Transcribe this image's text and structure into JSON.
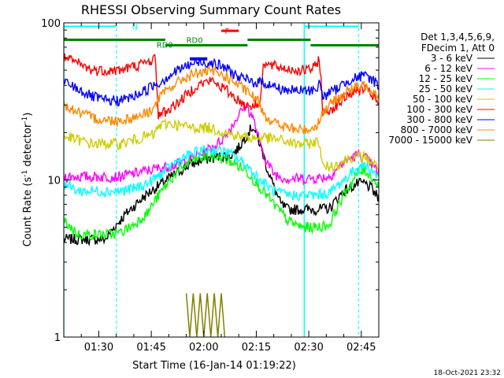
{
  "chart_data": {
    "type": "line",
    "title": "RHESSI Observing Summary Count Rates",
    "xlabel": "Start Time (16-Jan-14 01:19:22)",
    "ylabel_main": "Count Rate (s",
    "ylabel_sup1": "-1",
    "ylabel_mid": " detector",
    "ylabel_sup2": "-1",
    "ylabel_end": ")",
    "yscale": "log",
    "ylim": [
      1,
      100
    ],
    "xlim_minutes": [
      0,
      90
    ],
    "x_ticks": [
      {
        "minute": 10,
        "label": "01:30"
      },
      {
        "minute": 25,
        "label": "01:45"
      },
      {
        "minute": 40,
        "label": "02:00"
      },
      {
        "minute": 55,
        "label": "02:15"
      },
      {
        "minute": 70,
        "label": "02:30"
      },
      {
        "minute": 85,
        "label": "02:45"
      }
    ],
    "y_ticks": [
      {
        "value": 1,
        "label": "1"
      },
      {
        "value": 10,
        "label": "10"
      },
      {
        "value": 100,
        "label": "100"
      }
    ],
    "legend_header": [
      "Det 1,3,4,5,6,9,",
      "FDecim 1, Att 0"
    ],
    "series": [
      {
        "name": "3 - 6 keV",
        "color": "#000000",
        "x": [
          0,
          4,
          8,
          12,
          16,
          20,
          24,
          28,
          32,
          36,
          40,
          44,
          48,
          50,
          52,
          54,
          56,
          58,
          60,
          62,
          64,
          68,
          72,
          76,
          80,
          84,
          86,
          88,
          90
        ],
        "y": [
          4.2,
          4.2,
          4.2,
          4.2,
          5.5,
          6.8,
          8.2,
          9.5,
          11,
          12.5,
          13.5,
          14,
          14.5,
          16,
          19,
          22,
          17,
          12,
          9,
          7,
          6.5,
          6.5,
          6.5,
          6.6,
          8.5,
          9.5,
          9.5,
          8.8,
          7.5
        ]
      },
      {
        "name": "6 - 12 keV",
        "color": "#ff00ff",
        "x": [
          0,
          4,
          8,
          12,
          16,
          20,
          24,
          28,
          32,
          36,
          40,
          44,
          46,
          48,
          50,
          52,
          54,
          56,
          58,
          60,
          62,
          64,
          68,
          72,
          76,
          80,
          84,
          86,
          88,
          90
        ],
        "y": [
          10.5,
          10.5,
          10.5,
          10.5,
          10.5,
          11,
          11.5,
          12,
          12.5,
          13.5,
          15,
          17,
          19,
          22,
          26,
          30,
          25,
          17,
          13,
          11,
          10.5,
          10.2,
          10.2,
          10.3,
          10.5,
          13,
          14.5,
          14,
          12.5,
          11
        ]
      },
      {
        "name": "12 - 25 keV",
        "color": "#00ff00",
        "x": [
          0,
          4,
          8,
          12,
          16,
          20,
          24,
          28,
          32,
          36,
          40,
          44,
          48,
          52,
          56,
          60,
          64,
          68,
          72,
          76,
          80,
          84,
          86,
          88,
          90
        ],
        "y": [
          5.5,
          4.5,
          4.5,
          4.5,
          4.6,
          5.2,
          6.2,
          8.5,
          11,
          13,
          14,
          14,
          13,
          11.5,
          9,
          7,
          5.5,
          5,
          5,
          5.2,
          8,
          11,
          11.5,
          10.5,
          9
        ]
      },
      {
        "name": "25 - 50 keV",
        "color": "#00ffff",
        "x": [
          0,
          4,
          8,
          12,
          16,
          20,
          24,
          28,
          32,
          36,
          40,
          44,
          48,
          52,
          56,
          60,
          64,
          68,
          72,
          76,
          80,
          84,
          86,
          88,
          90
        ],
        "y": [
          9.5,
          8.5,
          8.5,
          8.5,
          8.5,
          8.8,
          9.5,
          11,
          13,
          14.5,
          15.5,
          15.5,
          14.5,
          12.5,
          10,
          8.5,
          8,
          8,
          8,
          8.3,
          10,
          12,
          12.5,
          11.5,
          10.5
        ]
      },
      {
        "name": "50 - 100 keV",
        "color": "#cccc00",
        "x": [
          0,
          4,
          8,
          12,
          16,
          20,
          24,
          26,
          27,
          30,
          34,
          38,
          42,
          46,
          50,
          54,
          56,
          57,
          58,
          62,
          66,
          70,
          72,
          73,
          74,
          78,
          82,
          86,
          88,
          90
        ],
        "y": [
          19,
          18,
          17,
          17,
          17,
          18,
          19,
          19.5,
          22,
          23,
          22,
          21.5,
          21.5,
          20,
          19,
          18.5,
          18.5,
          19,
          18.5,
          18,
          17,
          17,
          17.5,
          17.5,
          12,
          12.5,
          14,
          14,
          13,
          12
        ]
      },
      {
        "name": "100 - 300 keV",
        "color": "#ff0000",
        "x": [
          0,
          4,
          8,
          12,
          16,
          20,
          24,
          26,
          27,
          30,
          34,
          38,
          42,
          46,
          50,
          52,
          54,
          56,
          57,
          58,
          62,
          66,
          70,
          72,
          73,
          74,
          78,
          82,
          86,
          88,
          90
        ],
        "y": [
          60,
          55,
          50,
          50,
          50,
          53,
          56,
          60,
          26,
          28,
          33,
          40,
          43,
          38,
          32,
          30,
          30,
          30,
          54,
          54,
          52,
          50,
          50,
          53,
          60,
          26,
          30,
          36,
          38,
          35,
          30
        ]
      },
      {
        "name": "300 - 800 keV",
        "color": "#0000ff",
        "x": [
          0,
          4,
          8,
          12,
          16,
          20,
          24,
          26,
          27,
          30,
          34,
          38,
          42,
          46,
          50,
          54,
          56,
          57,
          58,
          62,
          66,
          70,
          72,
          73,
          74,
          78,
          82,
          86,
          88,
          90
        ],
        "y": [
          42,
          38,
          34,
          32,
          32,
          34,
          38,
          41,
          41,
          46,
          52,
          56,
          56,
          52,
          45,
          42,
          42,
          42,
          41,
          38,
          37,
          37,
          38,
          41,
          34,
          38,
          44,
          46,
          44,
          40
        ]
      },
      {
        "name": "800 - 7000 keV",
        "color": "#ff8800",
        "x": [
          0,
          4,
          8,
          12,
          16,
          20,
          24,
          26,
          27,
          30,
          34,
          38,
          42,
          46,
          50,
          54,
          56,
          57,
          58,
          62,
          66,
          70,
          72,
          73,
          74,
          78,
          82,
          86,
          88,
          90
        ],
        "y": [
          30,
          27,
          25,
          24,
          24,
          25,
          27,
          29,
          33,
          38,
          44,
          48,
          49,
          46,
          40,
          34,
          31,
          27,
          25,
          22,
          21,
          21,
          22,
          24,
          27,
          33,
          38,
          40,
          38,
          34
        ]
      },
      {
        "name": "7000 - 15000 keV",
        "color": "#808000",
        "x": [
          0,
          10,
          20,
          34,
          35,
          36,
          37,
          38,
          39,
          40,
          41,
          42,
          43,
          44,
          45,
          46,
          50,
          60,
          70,
          80,
          90
        ],
        "y": [
          0,
          0,
          0,
          0,
          1.9,
          1.0,
          1.9,
          1.0,
          1.9,
          1.0,
          1.9,
          1.0,
          1.9,
          1.0,
          1.9,
          1.0,
          0,
          0,
          0,
          0,
          0
        ]
      }
    ],
    "annotations": [
      {
        "text": "N",
        "x_minute": 19.5,
        "y_value": 95,
        "color": "#00ffff"
      },
      {
        "text": "F",
        "x_minute": 46,
        "y_value": 89,
        "color": "#ff0000"
      },
      {
        "text": "RD0",
        "x_minute": 26.5,
        "y_value": 73,
        "color": "#008000"
      },
      {
        "text": "RD0",
        "x_minute": 35,
        "y_value": 78,
        "color": "#008000"
      }
    ],
    "footer": "18-Oct-2021 23:32"
  },
  "colors": {
    "axis": "#000000",
    "night": "#00ffff",
    "flare": "#ff0000",
    "saa_decimation": "#008000",
    "attenuator": "#0000ff"
  }
}
